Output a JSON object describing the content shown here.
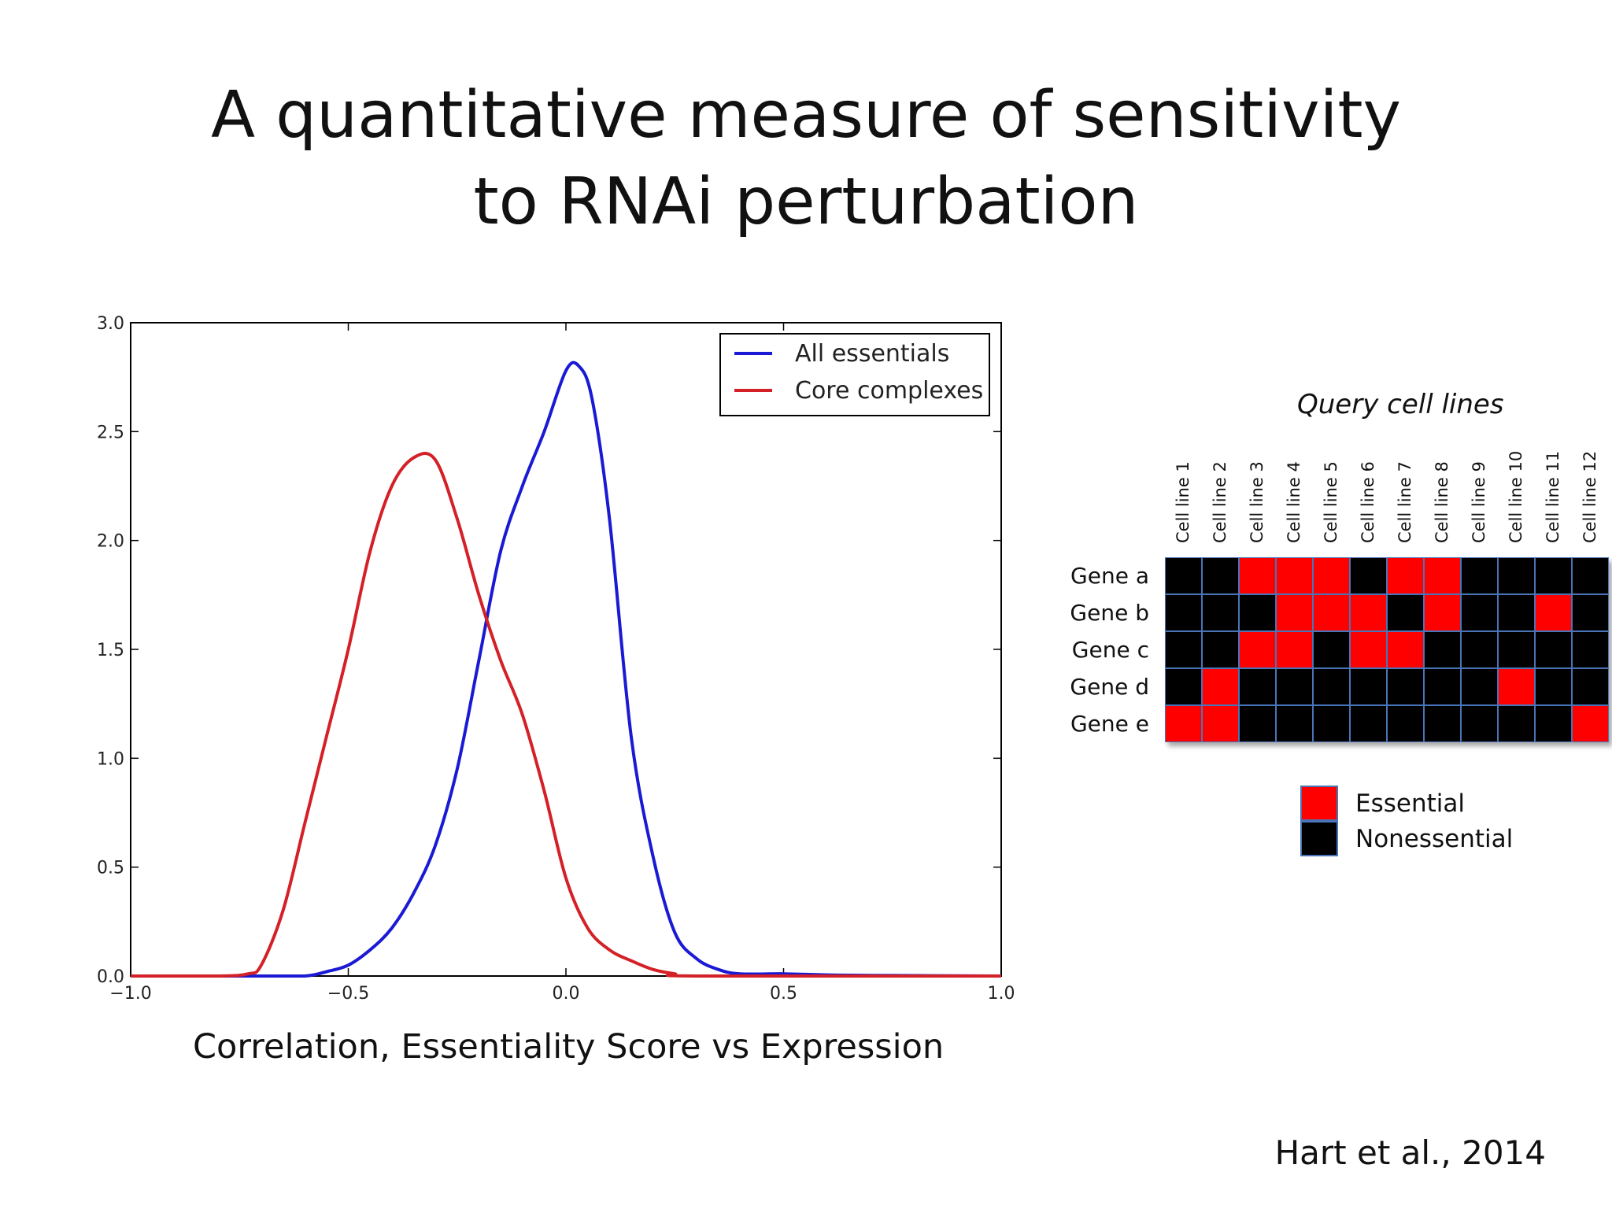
{
  "slide": {
    "title_line1": "A quantitative measure of sensitivity",
    "title_line2": "to RNAi perturbation",
    "caption": "Correlation, Essentiality  Score vs Expression",
    "citation": "Hart et al., 2014"
  },
  "chart_data": {
    "type": "line",
    "title": "",
    "xlabel": "",
    "ylabel": "",
    "xlim": [
      -1.0,
      1.0
    ],
    "ylim": [
      0.0,
      3.0
    ],
    "x_ticks": [
      -1.0,
      -0.5,
      0.0,
      0.5,
      1.0
    ],
    "y_ticks": [
      0.0,
      0.5,
      1.0,
      1.5,
      2.0,
      2.5,
      3.0
    ],
    "x_tick_labels": [
      "−1.0",
      "−0.5",
      "0.0",
      "0.5",
      "1.0"
    ],
    "y_tick_labels": [
      "0.0",
      "0.5",
      "1.0",
      "1.5",
      "2.0",
      "2.5",
      "3.0"
    ],
    "grid": false,
    "legend_position": "top-right",
    "series": [
      {
        "name": "All essentials",
        "color": "#1a1ad4",
        "points": [
          [
            -1.0,
            0.0
          ],
          [
            -0.7,
            0.0
          ],
          [
            -0.6,
            0.0
          ],
          [
            -0.55,
            0.02
          ],
          [
            -0.5,
            0.05
          ],
          [
            -0.45,
            0.12
          ],
          [
            -0.4,
            0.22
          ],
          [
            -0.35,
            0.38
          ],
          [
            -0.3,
            0.6
          ],
          [
            -0.25,
            0.95
          ],
          [
            -0.2,
            1.45
          ],
          [
            -0.15,
            1.95
          ],
          [
            -0.1,
            2.25
          ],
          [
            -0.05,
            2.5
          ],
          [
            0.0,
            2.78
          ],
          [
            0.03,
            2.8
          ],
          [
            0.06,
            2.65
          ],
          [
            0.1,
            2.1
          ],
          [
            0.15,
            1.1
          ],
          [
            0.2,
            0.55
          ],
          [
            0.25,
            0.2
          ],
          [
            0.3,
            0.08
          ],
          [
            0.35,
            0.03
          ],
          [
            0.4,
            0.01
          ],
          [
            0.5,
            0.01
          ],
          [
            0.6,
            0.005
          ],
          [
            0.7,
            0.003
          ],
          [
            1.0,
            0.0
          ]
        ]
      },
      {
        "name": "Core complexes",
        "color": "#d42027",
        "points": [
          [
            -1.0,
            0.0
          ],
          [
            -0.8,
            0.0
          ],
          [
            -0.73,
            0.01
          ],
          [
            -0.7,
            0.05
          ],
          [
            -0.65,
            0.3
          ],
          [
            -0.6,
            0.7
          ],
          [
            -0.55,
            1.1
          ],
          [
            -0.5,
            1.5
          ],
          [
            -0.45,
            1.95
          ],
          [
            -0.4,
            2.25
          ],
          [
            -0.35,
            2.38
          ],
          [
            -0.3,
            2.37
          ],
          [
            -0.25,
            2.1
          ],
          [
            -0.2,
            1.75
          ],
          [
            -0.15,
            1.45
          ],
          [
            -0.1,
            1.2
          ],
          [
            -0.05,
            0.85
          ],
          [
            0.0,
            0.45
          ],
          [
            0.05,
            0.22
          ],
          [
            0.1,
            0.12
          ],
          [
            0.15,
            0.07
          ],
          [
            0.2,
            0.03
          ],
          [
            0.25,
            0.01
          ],
          [
            0.3,
            0.0
          ],
          [
            1.0,
            0.0
          ]
        ]
      }
    ]
  },
  "matrix": {
    "title": "Query cell lines",
    "columns": [
      "Cell line 1",
      "Cell line 2",
      "Cell line 3",
      "Cell line 4",
      "Cell line 5",
      "Cell line 6",
      "Cell line 7",
      "Cell line 8",
      "Cell line 9",
      "Cell line 10",
      "Cell line 11",
      "Cell line 12"
    ],
    "rows": [
      {
        "label": "Gene a",
        "values": [
          0,
          0,
          1,
          1,
          1,
          0,
          1,
          1,
          0,
          0,
          0,
          0
        ]
      },
      {
        "label": "Gene b",
        "values": [
          0,
          0,
          0,
          1,
          1,
          1,
          0,
          1,
          0,
          0,
          1,
          0
        ]
      },
      {
        "label": "Gene c",
        "values": [
          0,
          0,
          1,
          1,
          0,
          1,
          1,
          0,
          0,
          0,
          0,
          0
        ]
      },
      {
        "label": "Gene d",
        "values": [
          0,
          1,
          0,
          0,
          0,
          0,
          0,
          0,
          0,
          1,
          0,
          0
        ]
      },
      {
        "label": "Gene e",
        "values": [
          1,
          1,
          0,
          0,
          0,
          0,
          0,
          0,
          0,
          0,
          0,
          1
        ]
      }
    ],
    "colors": {
      "essential": "#ff0000",
      "nonessential": "#000000"
    },
    "legend": {
      "essential": "Essential",
      "nonessential": "Nonessential"
    }
  }
}
